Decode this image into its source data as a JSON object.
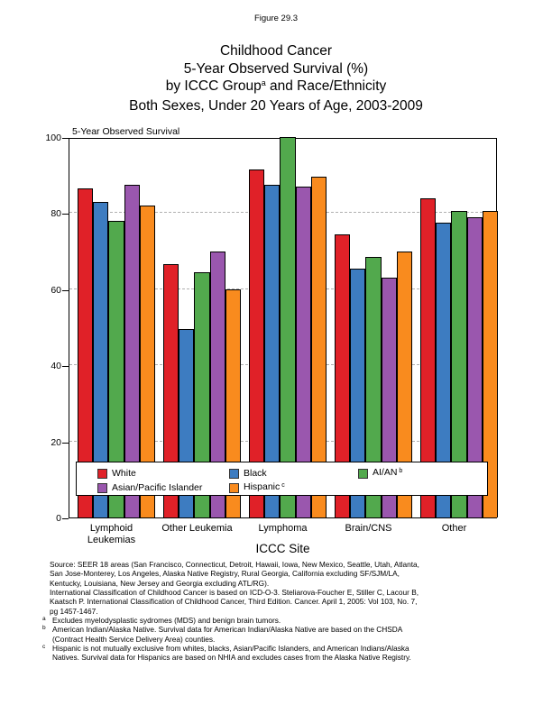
{
  "figure_label": "Figure 29.3",
  "title_lines": [
    {
      "text": "Childhood Cancer"
    },
    {
      "text": "5-Year Observed Survival (%)"
    },
    {
      "pre": "by ICCC Group",
      "sup": "a",
      "post": " and Race/Ethnicity"
    },
    {
      "text": "Both Sexes, Under 20 Years of Age, 2003-2009"
    }
  ],
  "chart_data": {
    "type": "bar",
    "title": "Childhood Cancer 5-Year Observed Survival (%) by ICCC Group and Race/Ethnicity, Both Sexes, Under 20 Years of Age, 2003-2009",
    "plot_header": "5-Year Observed Survival",
    "xlabel": "ICCC Site",
    "ylabel": "5-Year Observed Survival",
    "ylim": [
      0,
      100
    ],
    "yticks": [
      0,
      20,
      40,
      60,
      80,
      100
    ],
    "grid": "dashed-horizontal-at-20-40-60-80",
    "legend_position": "bottom-inside-plot",
    "categories": [
      "Lymphoid\nLeukemias",
      "Other Leukemia",
      "Lymphoma",
      "Brain/CNS",
      "Other"
    ],
    "series": [
      {
        "name": "White",
        "sup": "",
        "color": "#e02128",
        "values": [
          86.5,
          66.5,
          91.5,
          74.5,
          84
        ]
      },
      {
        "name": "Black",
        "sup": "",
        "color": "#3d7cc1",
        "values": [
          83,
          49.5,
          87.5,
          65.5,
          77.5
        ]
      },
      {
        "name": "AI/AN",
        "sup": "b",
        "color": "#52a94d",
        "values": [
          78,
          64.5,
          100,
          68.5,
          80.5
        ]
      },
      {
        "name": "Asian/Pacific Islander",
        "sup": "",
        "color": "#9a57ae",
        "values": [
          87.5,
          70,
          87,
          63,
          79
        ]
      },
      {
        "name": "Hispanic",
        "sup": "c",
        "color": "#f98b1e",
        "values": [
          82,
          60,
          89.5,
          70,
          80.5
        ]
      }
    ],
    "legend": {
      "rows": [
        [
          0,
          1,
          2
        ],
        [
          3,
          4
        ]
      ],
      "col_offsets": [
        23,
        169,
        312
      ]
    }
  },
  "footnotes": {
    "source_lines": [
      "Source: SEER 18 areas (San Francisco, Connecticut, Detroit, Hawaii, Iowa, New Mexico, Seattle, Utah, Atlanta,",
      "San Jose-Monterey, Los Angeles, Alaska Native Registry, Rural Georgia, California excluding SF/SJM/LA,",
      "Kentucky, Louisiana, New Jersey and Georgia excluding ATL/RG).",
      "International Classification of Childhood Cancer is based on ICD-O-3.  Steliarova-Foucher E, Stiller C, Lacour B,",
      "Kaatsch P. International Classification of Childhood Cancer, Third Edition. Cancer. April 1, 2005: Vol 103, No. 7,",
      "pg 1457-1467."
    ],
    "items": [
      {
        "sup": "a",
        "lines": [
          "Excludes myelodysplastic sydromes (MDS) and benign brain tumors."
        ]
      },
      {
        "sup": "b",
        "lines": [
          "American Indian/Alaska Native. Survival data for American Indian/Alaska Native are based on the CHSDA",
          "(Contract Health Service Delivery Area) counties."
        ]
      },
      {
        "sup": "c",
        "lines": [
          "Hispanic is not mutually exclusive from whites, blacks, Asian/Pacific Islanders, and American Indians/Alaska",
          "Natives. Survival data for Hispanics are based on NHIA and excludes cases from the Alaska Native Registry."
        ]
      }
    ]
  }
}
